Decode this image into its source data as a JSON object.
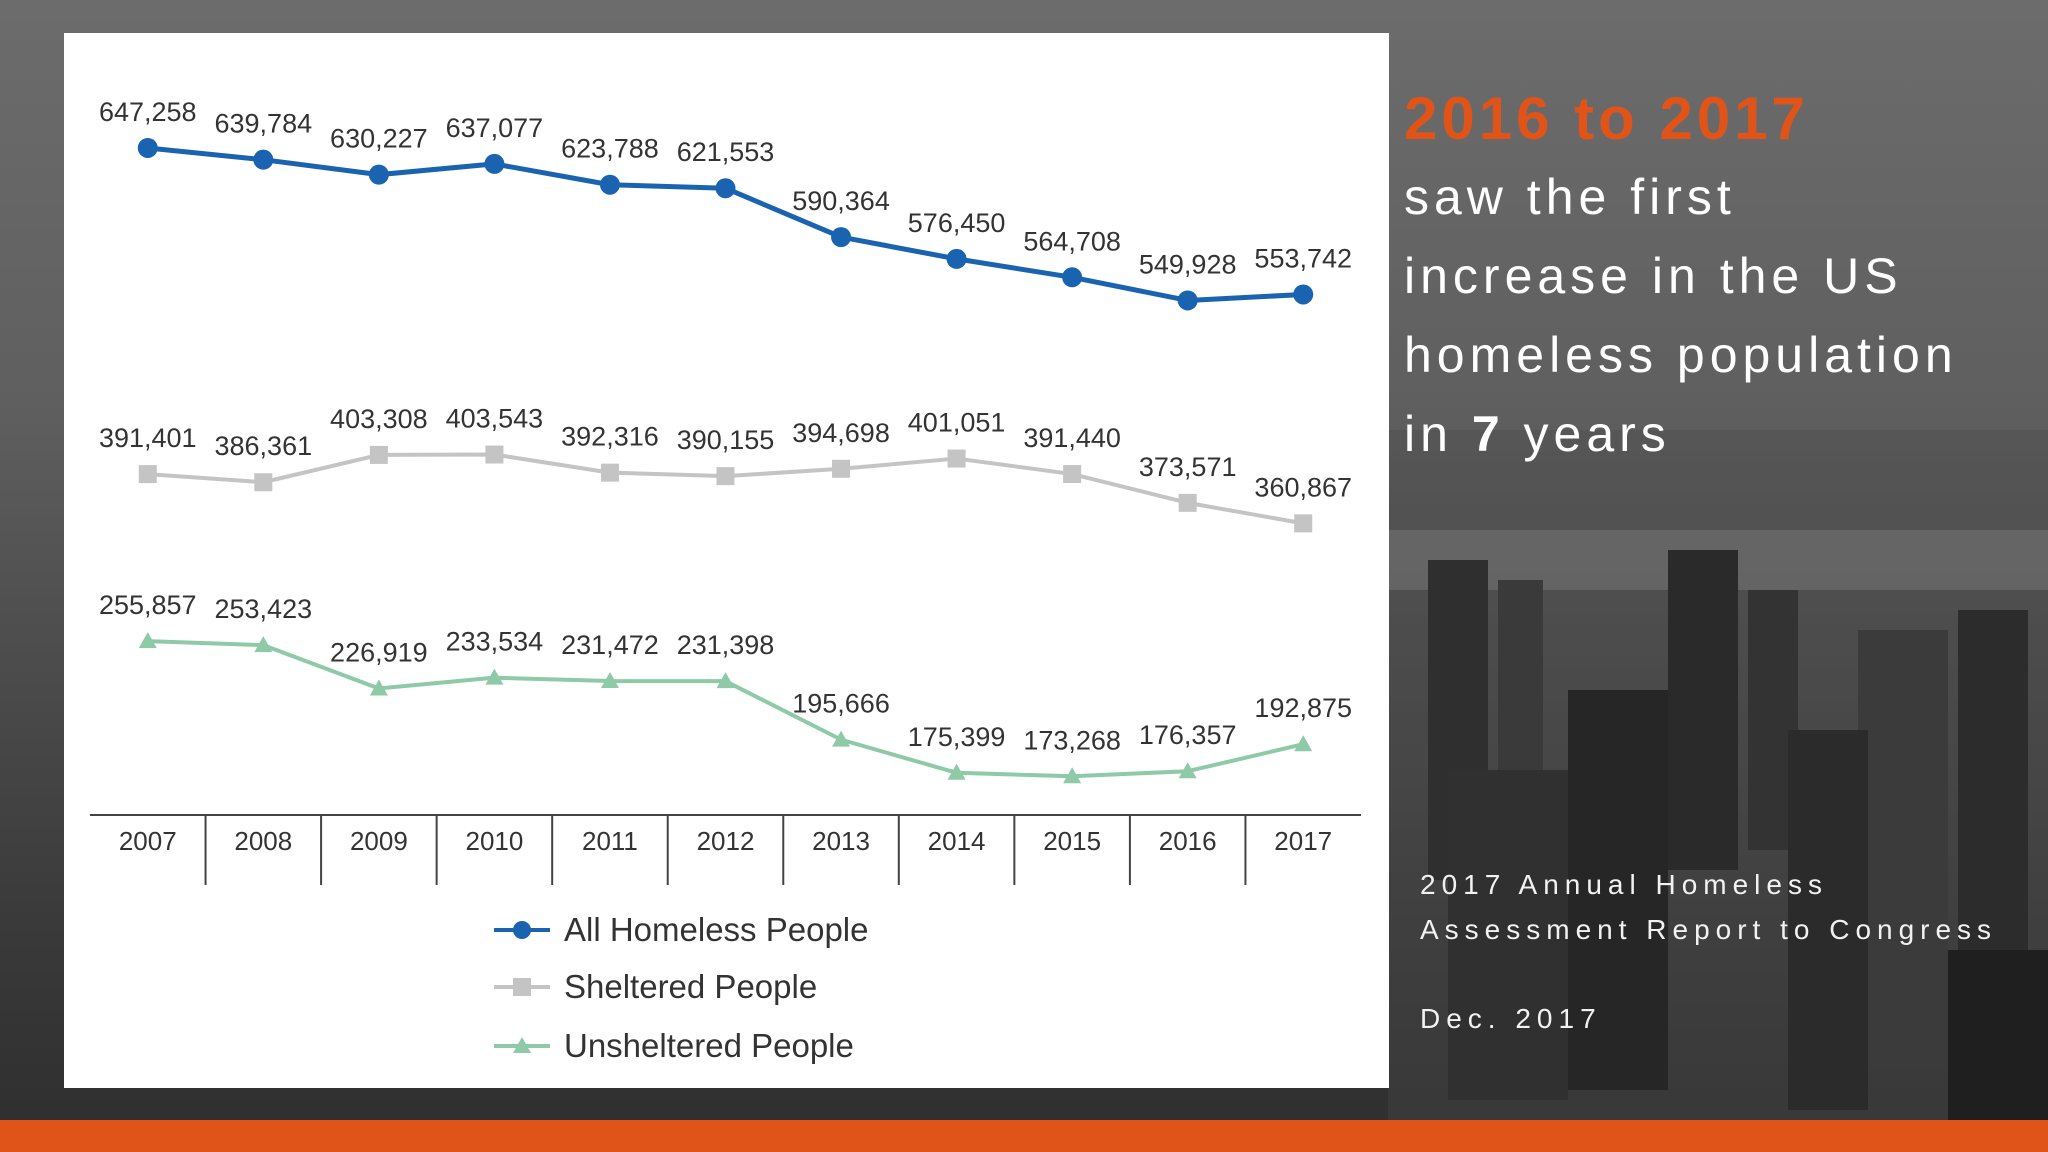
{
  "chart_data": {
    "type": "line",
    "title": "",
    "xlabel": "",
    "ylabel": "",
    "categories": [
      "2007",
      "2008",
      "2009",
      "2010",
      "2011",
      "2012",
      "2013",
      "2014",
      "2015",
      "2016",
      "2017"
    ],
    "series": [
      {
        "name": "All Homeless People",
        "color": "#1a63b0",
        "marker": "circle",
        "values": [
          647258,
          639784,
          630227,
          637077,
          623788,
          621553,
          590364,
          576450,
          564708,
          549928,
          553742
        ],
        "labels": [
          "647,258",
          "639,784",
          "630,227",
          "637,077",
          "623,788",
          "621,553",
          "590,364",
          "576,450",
          "564,708",
          "549,928",
          "553,742"
        ]
      },
      {
        "name": "Sheltered People",
        "color": "#c4c4c4",
        "marker": "square",
        "values": [
          391401,
          386361,
          403308,
          403543,
          392316,
          390155,
          394698,
          401051,
          391440,
          373571,
          360867
        ],
        "labels": [
          "391,401",
          "386,361",
          "403,308",
          "403,543",
          "392,316",
          "390,155",
          "394,698",
          "401,051",
          "391,440",
          "373,571",
          "360,867"
        ]
      },
      {
        "name": "Unsheltered People",
        "color": "#8ec9a8",
        "marker": "triangle",
        "values": [
          255857,
          253423,
          226919,
          233534,
          231472,
          231398,
          195666,
          175399,
          173268,
          176357,
          192875
        ],
        "labels": [
          "255,857",
          "253,423",
          "226,919",
          "233,534",
          "231,472",
          "231,398",
          "195,666",
          "175,399",
          "173,268",
          "176,357",
          "192,875"
        ]
      }
    ],
    "legend_position": "bottom-center",
    "grid": false
  },
  "headline": {
    "range_text": "2016 to 2017",
    "line1": "saw the first",
    "line2": "increase in the US",
    "line3": "homeless population",
    "line4_prefix": "in ",
    "line4_number": "7",
    "line4_suffix": " years"
  },
  "source": {
    "title": "2017 Annual Homeless Assessment Report to Congress",
    "date": "Dec. 2017"
  },
  "colors": {
    "accent": "#e0541a",
    "panel": "#ffffff"
  }
}
